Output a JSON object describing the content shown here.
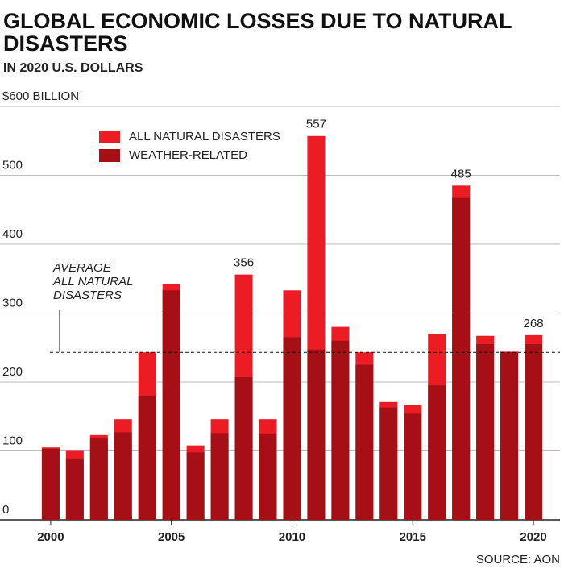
{
  "chart_data": {
    "type": "bar",
    "title": "GLOBAL ECONOMIC LOSSES DUE TO NATURAL DISASTERS",
    "subtitle": "IN 2020 U.S. DOLLARS",
    "source": "SOURCE: AON",
    "x": [
      2000,
      2001,
      2002,
      2003,
      2004,
      2005,
      2006,
      2007,
      2008,
      2009,
      2010,
      2011,
      2012,
      2013,
      2014,
      2015,
      2016,
      2017,
      2018,
      2019,
      2020
    ],
    "xlim": [
      1997.9,
      2021.1
    ],
    "xticks": [
      2000,
      2005,
      2010,
      2015,
      2020
    ],
    "ylim": [
      0,
      600
    ],
    "yticks": [
      0,
      100,
      200,
      300,
      400,
      500,
      {
        "value": 600,
        "label": "$600 BILLION"
      }
    ],
    "grid": true,
    "series": [
      {
        "name": "ALL NATURAL DISASTERS",
        "color": "#ec1c24",
        "values": [
          105,
          100,
          123,
          146,
          243,
          342,
          108,
          146,
          356,
          146,
          333,
          557,
          280,
          243,
          171,
          167,
          270,
          485,
          267,
          244,
          268
        ],
        "value_labels": [
          null,
          null,
          null,
          null,
          null,
          null,
          null,
          null,
          "356",
          null,
          null,
          "557",
          null,
          null,
          null,
          null,
          null,
          "485",
          null,
          null,
          "268"
        ]
      },
      {
        "name": "WEATHER-RELATED",
        "color": "#a50f15",
        "values": [
          103,
          89,
          118,
          127,
          179,
          333,
          98,
          126,
          207,
          124,
          265,
          247,
          260,
          225,
          163,
          154,
          195,
          467,
          255,
          243,
          255
        ]
      }
    ],
    "average": {
      "value": 243,
      "label": [
        "AVERAGE",
        "ALL NATURAL",
        "DISASTERS"
      ]
    }
  }
}
